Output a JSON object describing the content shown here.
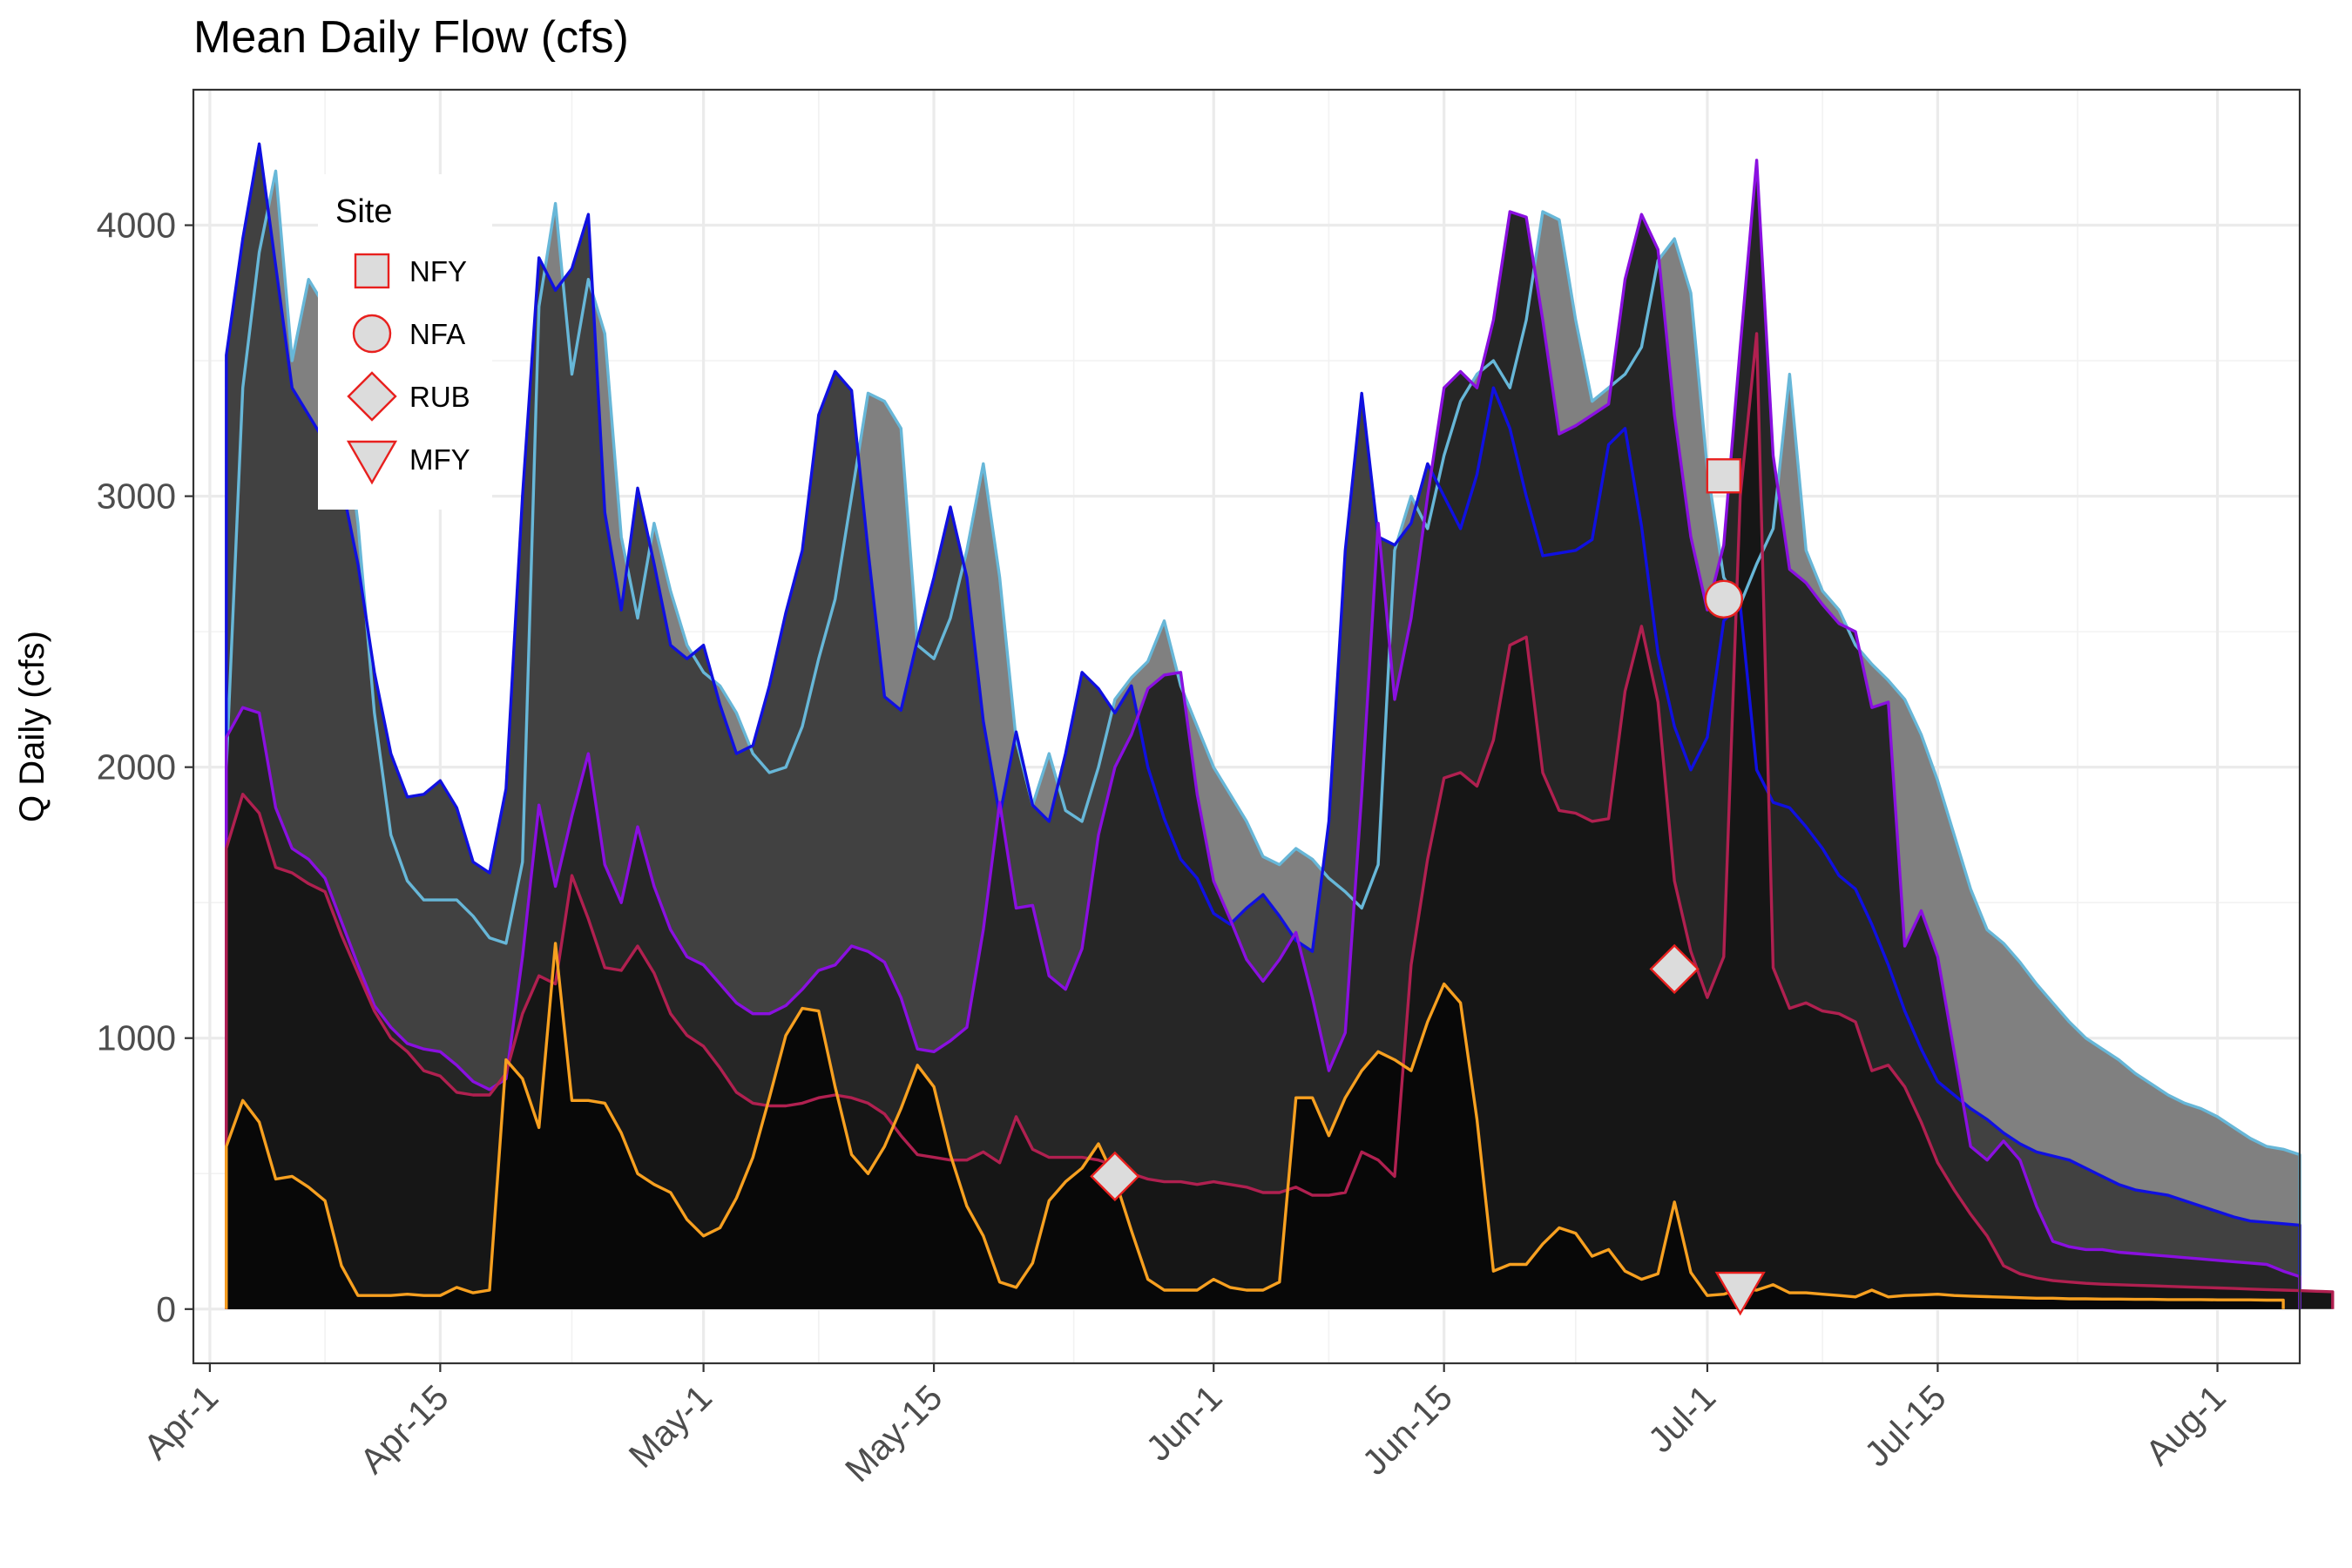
{
  "chart_data": {
    "type": "area",
    "title": "Mean Daily Flow (cfs)",
    "xlabel": "",
    "ylabel": "Q Daily (cfs)",
    "x_start": "Apr-2",
    "x_end": "Aug-3",
    "xlim": [
      "Mar-31",
      "Aug-7"
    ],
    "ylim": [
      -200,
      4500
    ],
    "x_ticks": [
      {
        "label": "Apr-1",
        "day": 1
      },
      {
        "label": "Apr-15",
        "day": 15
      },
      {
        "label": "May-1",
        "day": 31
      },
      {
        "label": "May-15",
        "day": 45
      },
      {
        "label": "Jun-1",
        "day": 62
      },
      {
        "label": "Jun-15",
        "day": 76
      },
      {
        "label": "Jul-1",
        "day": 92
      },
      {
        "label": "Jul-15",
        "day": 106
      },
      {
        "label": "Aug-1",
        "day": 123
      }
    ],
    "y_ticks": [
      0,
      1000,
      2000,
      3000,
      4000
    ],
    "grid": true,
    "legend": {
      "title": "Site",
      "position": "top-left inside",
      "entries": [
        {
          "label": "NFY",
          "shape": "square"
        },
        {
          "label": "NFA",
          "shape": "circle"
        },
        {
          "label": "RUB",
          "shape": "diamond"
        },
        {
          "label": "MFY",
          "shape": "triangle-down"
        }
      ]
    },
    "marker_style": {
      "fill": "#dcdcdc",
      "stroke": "#e8201e"
    },
    "series": [
      {
        "name": "",
        "line_color": "#67b7d8",
        "fill_color": "#808080",
        "values": [
          2000,
          3400,
          3900,
          4200,
          3500,
          3800,
          3700,
          3400,
          2900,
          2200,
          1750,
          1580,
          1510,
          1510,
          1510,
          1450,
          1370,
          1350,
          1650,
          3700,
          4080,
          3450,
          3800,
          3600,
          2850,
          2550,
          2900,
          2650,
          2450,
          2350,
          2300,
          2200,
          2050,
          1980,
          2000,
          2150,
          2400,
          2620,
          3000,
          3380,
          3350,
          3250,
          2450,
          2400,
          2550,
          2800,
          3120,
          2700,
          2100,
          1860,
          2050,
          1840,
          1800,
          2000,
          2250,
          2330,
          2390,
          2540,
          2300,
          2150,
          2000,
          1900,
          1800,
          1670,
          1640,
          1700,
          1660,
          1590,
          1540,
          1480,
          1640,
          2800,
          3000,
          2880,
          3150,
          3350,
          3450,
          3500,
          3400,
          3650,
          4050,
          4020,
          3650,
          3350,
          3400,
          3450,
          3550,
          3870,
          3950,
          3750,
          3100,
          2700,
          2600,
          2750,
          2880,
          3450,
          2800,
          2650,
          2580,
          2450,
          2380,
          2320,
          2250,
          2120,
          1950,
          1750,
          1550,
          1400,
          1350,
          1280,
          1200,
          1130,
          1060,
          1000,
          960,
          920,
          870,
          830,
          790,
          760,
          740,
          710,
          670,
          630,
          600,
          590,
          570
        ]
      },
      {
        "name": "",
        "line_color": "#1010e0",
        "fill_color": "#414141",
        "values": [
          3520,
          3950,
          4300,
          3850,
          3400,
          3300,
          3200,
          3050,
          2750,
          2350,
          2050,
          1890,
          1900,
          1950,
          1850,
          1650,
          1610,
          1920,
          3000,
          3880,
          3760,
          3840,
          4040,
          2940,
          2580,
          3030,
          2750,
          2450,
          2400,
          2450,
          2230,
          2050,
          2080,
          2300,
          2570,
          2800,
          3300,
          3460,
          3390,
          2800,
          2260,
          2210,
          2470,
          2700,
          2960,
          2700,
          2170,
          1820,
          2130,
          1860,
          1800,
          2050,
          2350,
          2290,
          2200,
          2300,
          2000,
          1810,
          1660,
          1590,
          1460,
          1420,
          1480,
          1530,
          1450,
          1360,
          1320,
          1800,
          2800,
          3380,
          2850,
          2820,
          2900,
          3120,
          3000,
          2880,
          3080,
          3400,
          3250,
          3000,
          2780,
          2790,
          2800,
          2840,
          3190,
          3250,
          2890,
          2420,
          2150,
          1990,
          2110,
          2540,
          2600,
          1990,
          1870,
          1850,
          1780,
          1700,
          1600,
          1550,
          1420,
          1270,
          1100,
          960,
          840,
          790,
          740,
          700,
          650,
          610,
          580,
          565,
          550,
          520,
          490,
          460,
          440,
          430,
          420,
          400,
          380,
          360,
          340,
          325,
          320,
          315,
          310
        ]
      },
      {
        "name": "",
        "line_color": "#8a10e0",
        "fill_color": "#262626",
        "values": [
          2110,
          2220,
          2200,
          1850,
          1700,
          1660,
          1590,
          1430,
          1270,
          1120,
          1040,
          980,
          960,
          950,
          900,
          840,
          810,
          850,
          1300,
          1860,
          1560,
          1820,
          2050,
          1640,
          1500,
          1780,
          1560,
          1400,
          1300,
          1270,
          1200,
          1130,
          1090,
          1090,
          1120,
          1180,
          1250,
          1270,
          1340,
          1320,
          1280,
          1150,
          960,
          950,
          990,
          1040,
          1400,
          1870,
          1480,
          1490,
          1230,
          1180,
          1330,
          1750,
          2000,
          2120,
          2290,
          2340,
          2350,
          1900,
          1580,
          1440,
          1290,
          1210,
          1290,
          1390,
          1150,
          880,
          1020,
          1900,
          2900,
          2250,
          2550,
          3000,
          3400,
          3460,
          3400,
          3650,
          4050,
          4030,
          3650,
          3230,
          3260,
          3300,
          3340,
          3800,
          4040,
          3910,
          3300,
          2850,
          2580,
          2820,
          3550,
          4240,
          3150,
          2730,
          2680,
          2600,
          2530,
          2500,
          2220,
          2240,
          1340,
          1470,
          1300,
          950,
          600,
          550,
          620,
          550,
          380,
          250,
          230,
          220,
          220,
          210,
          205,
          200,
          195,
          190,
          185,
          180,
          175,
          170,
          165,
          140,
          120
        ]
      },
      {
        "name": "",
        "line_color": "#b02050",
        "fill_color": "#161616",
        "values": [
          1700,
          1900,
          1830,
          1630,
          1610,
          1570,
          1540,
          1380,
          1240,
          1100,
          1000,
          950,
          880,
          860,
          800,
          790,
          790,
          870,
          1090,
          1230,
          1200,
          1600,
          1440,
          1260,
          1250,
          1340,
          1240,
          1090,
          1010,
          970,
          890,
          800,
          760,
          750,
          750,
          760,
          780,
          790,
          780,
          760,
          720,
          640,
          570,
          560,
          550,
          550,
          580,
          540,
          710,
          590,
          560,
          560,
          560,
          550,
          530,
          500,
          480,
          470,
          470,
          460,
          470,
          460,
          450,
          430,
          430,
          450,
          420,
          420,
          430,
          580,
          550,
          490,
          1270,
          1660,
          1960,
          1980,
          1930,
          2100,
          2450,
          2480,
          1980,
          1840,
          1830,
          1800,
          1810,
          2280,
          2520,
          2240,
          1580,
          1320,
          1150,
          1300,
          3000,
          3600,
          1260,
          1110,
          1130,
          1100,
          1090,
          1060,
          880,
          900,
          820,
          690,
          540,
          440,
          350,
          270,
          160,
          130,
          115,
          105,
          100,
          95,
          92,
          90,
          88,
          86,
          84,
          82,
          80,
          78,
          76,
          74,
          72,
          70,
          68,
          66,
          64
        ]
      },
      {
        "name": "",
        "line_color": "#f7a020",
        "fill_color": "#080808",
        "values": [
          600,
          770,
          690,
          480,
          490,
          450,
          400,
          160,
          50,
          50,
          50,
          55,
          50,
          50,
          80,
          60,
          70,
          920,
          850,
          670,
          1350,
          770,
          770,
          760,
          650,
          500,
          460,
          430,
          330,
          270,
          300,
          410,
          560,
          780,
          1010,
          1110,
          1100,
          820,
          570,
          500,
          600,
          740,
          900,
          820,
          570,
          380,
          270,
          100,
          80,
          170,
          400,
          470,
          520,
          610,
          480,
          290,
          110,
          70,
          70,
          70,
          110,
          80,
          70,
          70,
          100,
          780,
          780,
          640,
          780,
          880,
          950,
          920,
          880,
          1060,
          1200,
          1130,
          700,
          140,
          165,
          165,
          240,
          300,
          280,
          195,
          220,
          140,
          110,
          130,
          395,
          135,
          50,
          55,
          75,
          70,
          90,
          60,
          60,
          55,
          50,
          45,
          70,
          45,
          50,
          52,
          55,
          50,
          48,
          46,
          44,
          42,
          40,
          40,
          38,
          38,
          37,
          37,
          36,
          36,
          35,
          35,
          35,
          34,
          34,
          34,
          33,
          33
        ]
      }
    ],
    "markers": [
      {
        "site": "NFY",
        "date": "Jul-2",
        "value": 3075
      },
      {
        "site": "NFA",
        "date": "Jul-2",
        "value": 2620
      },
      {
        "site": "RUB",
        "date": "Jun-29",
        "value": 1255
      },
      {
        "site": "RUB",
        "date": "May-26",
        "value": 490
      },
      {
        "site": "MFY",
        "date": "Jul-3",
        "value": 70
      }
    ]
  }
}
